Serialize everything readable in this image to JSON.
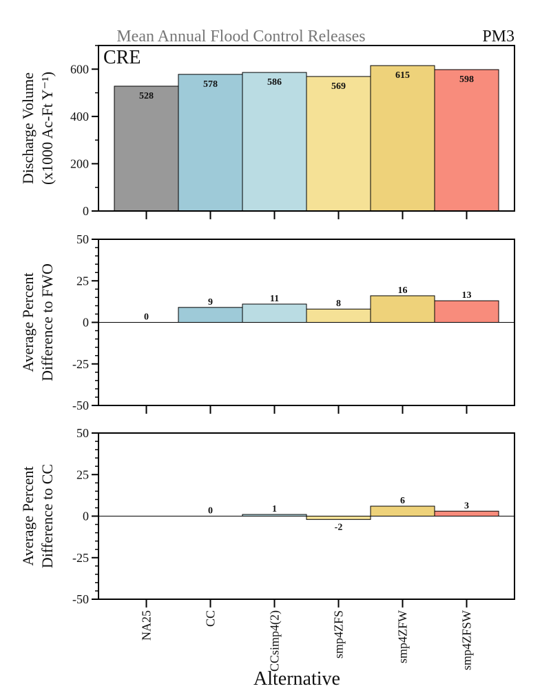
{
  "header": {
    "title": "Mean Annual Flood Control Releases",
    "code": "PM3",
    "panel_tag": "CRE",
    "title_color": "#777777"
  },
  "x_axis_title": "Alternative",
  "chart_data": [
    {
      "type": "bar",
      "ylabel": [
        "Discharge Volume",
        "(x1000 Ac-Ft Y⁻¹)"
      ],
      "categories": [
        "NA25",
        "CC",
        "CCsimp4(2)",
        "smp4ZFS",
        "smp4ZFW",
        "smp4ZFSW"
      ],
      "values": [
        528,
        578,
        586,
        569,
        615,
        598
      ],
      "labels": [
        "528",
        "578",
        "586",
        "569",
        "615",
        "598"
      ],
      "ylim": [
        0,
        700
      ],
      "yticks": [
        0,
        200,
        400,
        600
      ],
      "ytick_labels": [
        "0",
        "200",
        "400",
        "600"
      ],
      "minor_step": 100
    },
    {
      "type": "bar",
      "ylabel": [
        "Average Percent",
        "Difference to FWO"
      ],
      "categories": [
        "NA25",
        "CC",
        "CCsimp4(2)",
        "smp4ZFS",
        "smp4ZFW",
        "smp4ZFSW"
      ],
      "values": [
        0,
        9,
        11,
        8,
        16,
        13
      ],
      "labels": [
        "0",
        "9",
        "11",
        "8",
        "16",
        "13"
      ],
      "ylim": [
        -50,
        50
      ],
      "yticks": [
        -50,
        -25,
        0,
        25,
        50
      ],
      "ytick_labels": [
        "-50",
        "-25",
        "0",
        "25",
        "50"
      ],
      "minor_step": 5
    },
    {
      "type": "bar",
      "ylabel": [
        "Average Percent",
        "Difference to CC"
      ],
      "categories": [
        "NA25",
        "CC",
        "CCsimp4(2)",
        "smp4ZFS",
        "smp4ZFW",
        "smp4ZFSW"
      ],
      "values": [
        null,
        0,
        1,
        -2,
        6,
        3
      ],
      "labels": [
        "",
        "0",
        "1",
        "-2",
        "6",
        "3"
      ],
      "ylim": [
        -50,
        50
      ],
      "yticks": [
        -50,
        -25,
        0,
        25,
        50
      ],
      "ytick_labels": [
        "-50",
        "-25",
        "0",
        "25",
        "50"
      ],
      "minor_step": 5
    }
  ],
  "colors": [
    "#999999",
    "#9ecad8",
    "#badce3",
    "#f5e196",
    "#eed27a",
    "#f88c7c"
  ]
}
